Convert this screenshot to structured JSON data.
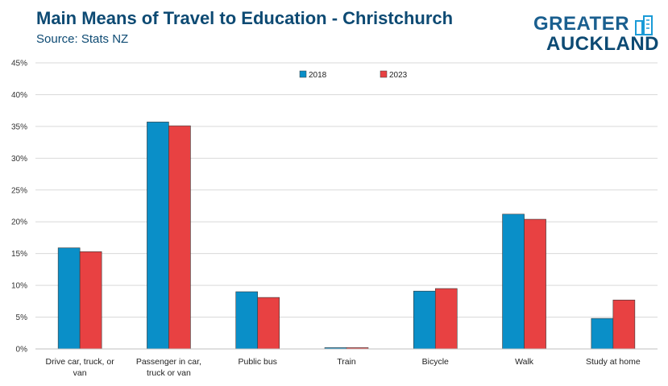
{
  "title": "Main Means of Travel to Education - Christchurch",
  "subtitle": "Source: Stats NZ",
  "logo": {
    "line1": "GREATER",
    "line2": "AUCKLAND",
    "icon": "building-icon"
  },
  "chart_data": {
    "type": "bar",
    "title": "Main Means of Travel to Education - Christchurch",
    "subtitle": "Source: Stats NZ",
    "categories": [
      [
        "Drive car, truck, or",
        "van"
      ],
      [
        "Passenger in car,",
        "truck or van"
      ],
      [
        "Public bus"
      ],
      [
        "Train"
      ],
      [
        "Bicycle"
      ],
      [
        "Walk"
      ],
      [
        "Study at home"
      ]
    ],
    "series": [
      {
        "name": "2018",
        "color": "#0a8fc8",
        "values": [
          15.9,
          35.7,
          9.0,
          0.2,
          9.1,
          21.2,
          4.8
        ]
      },
      {
        "name": "2023",
        "color": "#e84142",
        "values": [
          15.3,
          35.1,
          8.1,
          0.2,
          9.5,
          20.4,
          7.7
        ]
      }
    ],
    "ylim": [
      0,
      45
    ],
    "yticks": [
      "0%",
      "5%",
      "10%",
      "15%",
      "20%",
      "25%",
      "30%",
      "35%",
      "40%",
      "45%"
    ],
    "grid": true,
    "legend": "top-center"
  }
}
